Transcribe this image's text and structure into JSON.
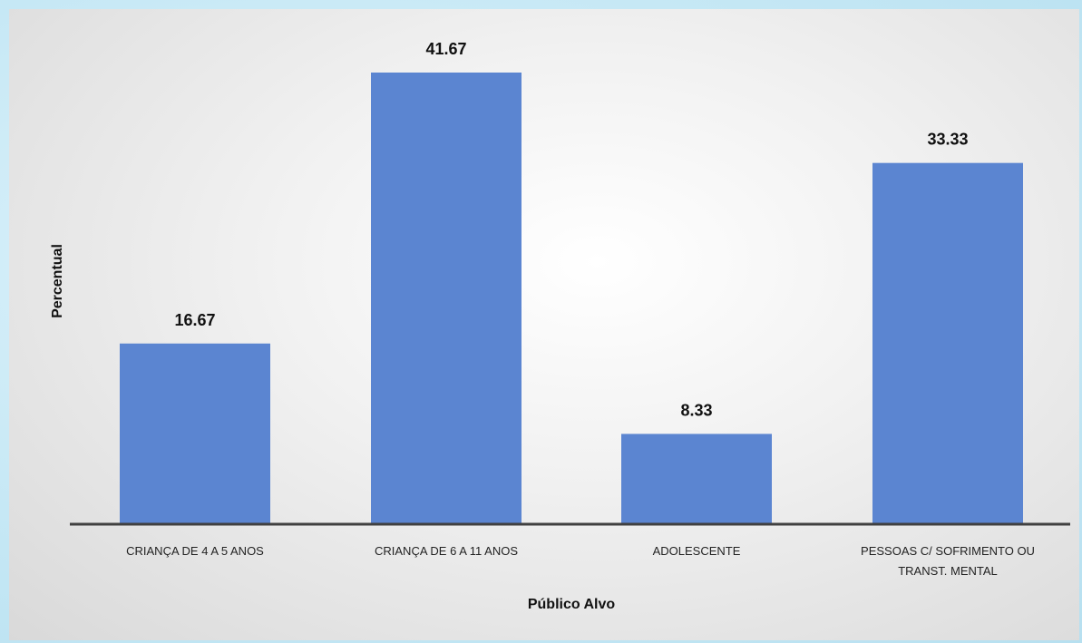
{
  "chart_data": {
    "type": "bar",
    "categories": [
      "CRIANÇA DE 4 A 5 ANOS",
      "CRIANÇA DE 6 A 11 ANOS",
      "ADOLESCENTE",
      "PESSOAS C/ SOFRIMENTO OU TRANST. MENTAL"
    ],
    "category_lines": [
      [
        "CRIANÇA DE 4 A 5 ANOS"
      ],
      [
        "CRIANÇA DE 6 A 11 ANOS"
      ],
      [
        "ADOLESCENTE"
      ],
      [
        "PESSOAS C/ SOFRIMENTO OU",
        "TRANST. MENTAL"
      ]
    ],
    "values": [
      16.67,
      41.67,
      8.33,
      33.33
    ],
    "value_labels": [
      "16.67",
      "41.67",
      "8.33",
      "33.33"
    ],
    "xlabel": "Público Alvo",
    "ylabel": "Percentual",
    "ylim": [
      0,
      45
    ],
    "grid": false,
    "bar_color": "#5b85d1",
    "background_color": "#c9e9f6"
  }
}
